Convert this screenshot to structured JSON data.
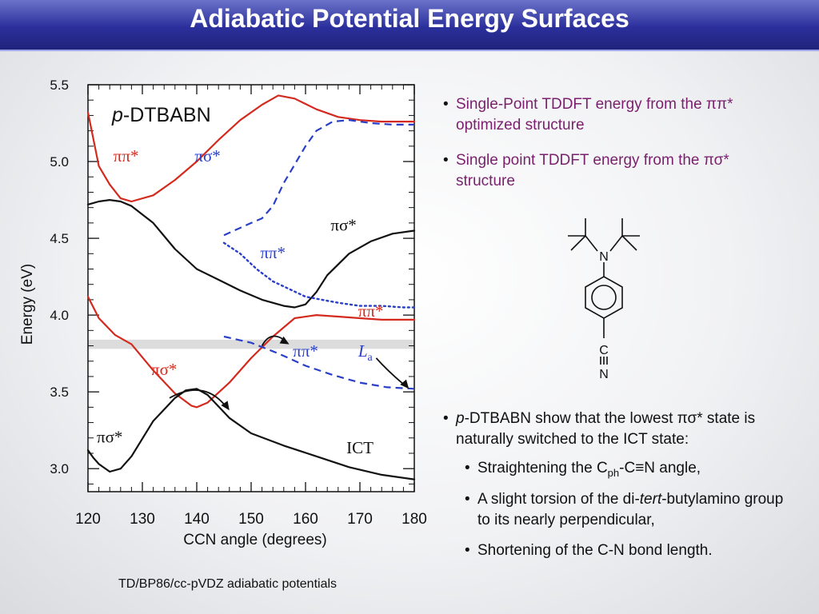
{
  "title": "Adiabatic Potential Energy Surfaces",
  "caption": "TD/BP86/cc-pVDZ adiabatic potentials",
  "bullets": {
    "b1": "Single-Point TDDFT energy from the ππ* optimized structure",
    "b2": "Single point TDDFT energy from the πσ* structure",
    "b3": "p-DTBABN show that the lowest πσ* state is naturally switched to the ICT state:",
    "s1": "Straightening the Cph-C≡N angle,",
    "s2": "A slight torsion of the di-tert-butylamino group to its nearly perpendicular,",
    "s3": "Shortening of the C-N bond length."
  },
  "molecule": {
    "atom_n": "N",
    "atom_c": "C",
    "atom_n2": "N"
  },
  "chart_data": {
    "type": "line",
    "title": "p-DTBABN",
    "xlabel": "CCN angle (degrees)",
    "ylabel": "Energy (eV)",
    "xlim": [
      120,
      180
    ],
    "ylim": [
      2.85,
      5.5
    ],
    "xticks": [
      120,
      130,
      140,
      150,
      160,
      170,
      180
    ],
    "yticks": [
      3.0,
      3.5,
      4.0,
      4.5,
      5.0,
      5.5
    ],
    "shaded_band": [
      3.78,
      3.84
    ],
    "series": [
      {
        "style": "red-solid",
        "color": "#d42a1e",
        "x": [
          120,
          122,
          124,
          126,
          128,
          132,
          136,
          140,
          144,
          148,
          152,
          155,
          158,
          162,
          166,
          170,
          174,
          180
        ],
        "y": [
          5.32,
          4.97,
          4.85,
          4.76,
          4.74,
          4.78,
          4.88,
          5.0,
          5.14,
          5.27,
          5.37,
          5.43,
          5.41,
          5.34,
          5.29,
          5.27,
          5.26,
          5.26
        ]
      },
      {
        "style": "black-solid",
        "color": "#111111",
        "x": [
          120,
          122,
          124,
          126,
          128,
          132,
          136,
          140,
          144,
          148,
          152,
          156,
          158,
          160,
          162,
          164,
          168,
          172,
          176,
          180
        ],
        "y": [
          4.72,
          4.74,
          4.75,
          4.74,
          4.71,
          4.6,
          4.43,
          4.3,
          4.23,
          4.16,
          4.1,
          4.06,
          4.05,
          4.07,
          4.15,
          4.26,
          4.4,
          4.48,
          4.53,
          4.55
        ]
      },
      {
        "style": "red-solid",
        "color": "#d42a1e",
        "x": [
          120,
          122,
          125,
          128,
          132,
          136,
          139,
          140,
          142,
          146,
          150,
          154,
          158,
          162,
          166,
          170,
          174,
          180
        ],
        "y": [
          4.12,
          3.98,
          3.87,
          3.81,
          3.64,
          3.49,
          3.41,
          3.4,
          3.43,
          3.56,
          3.72,
          3.86,
          3.98,
          4.0,
          3.99,
          3.98,
          3.97,
          3.97
        ]
      },
      {
        "style": "black-solid",
        "color": "#111111",
        "x": [
          120,
          121,
          122,
          124,
          126,
          128,
          132,
          136,
          138,
          140,
          142,
          146,
          150,
          156,
          162,
          168,
          174,
          180
        ],
        "y": [
          3.12,
          3.07,
          3.03,
          2.98,
          3.0,
          3.08,
          3.31,
          3.46,
          3.51,
          3.52,
          3.48,
          3.33,
          3.23,
          3.15,
          3.08,
          3.01,
          2.96,
          2.93
        ]
      },
      {
        "style": "blue-dashed",
        "color": "#2a3fc8",
        "x": [
          145,
          150,
          152,
          154,
          156,
          158,
          160,
          162,
          165,
          168,
          172,
          176,
          180
        ],
        "y": [
          4.52,
          4.6,
          4.63,
          4.71,
          4.86,
          4.98,
          5.1,
          5.2,
          5.26,
          5.27,
          5.25,
          5.24,
          5.24
        ]
      },
      {
        "style": "blue-dotted",
        "color": "#2a3fc8",
        "x": [
          145,
          148,
          151,
          154,
          157,
          160,
          163,
          166,
          170,
          174,
          178,
          180
        ],
        "y": [
          4.47,
          4.4,
          4.3,
          4.22,
          4.17,
          4.12,
          4.1,
          4.08,
          4.06,
          4.06,
          4.05,
          4.05
        ]
      },
      {
        "style": "blue-dashed",
        "color": "#2a3fc8",
        "x": [
          145,
          150,
          155,
          160,
          165,
          170,
          175,
          180
        ],
        "y": [
          3.86,
          3.82,
          3.75,
          3.67,
          3.61,
          3.56,
          3.53,
          3.52
        ]
      }
    ],
    "annotations": [
      {
        "text": "ππ*",
        "x": 127,
        "y": 5.0,
        "color": "#d42a1e"
      },
      {
        "text": "πσ*",
        "x": 142,
        "y": 5.0,
        "color": "#2a3fc8"
      },
      {
        "text": "πσ*",
        "x": 167,
        "y": 4.55,
        "color": "#111111"
      },
      {
        "text": "ππ*",
        "x": 154,
        "y": 4.37,
        "color": "#2a3fc8"
      },
      {
        "text": "ππ*",
        "x": 172,
        "y": 3.99,
        "color": "#d42a1e"
      },
      {
        "text": "ππ*",
        "x": 160,
        "y": 3.73,
        "color": "#2a3fc8"
      },
      {
        "text": "La",
        "x": 171,
        "y": 3.73,
        "color": "#2a3fc8"
      },
      {
        "text": "πσ*",
        "x": 134,
        "y": 3.61,
        "color": "#d42a1e"
      },
      {
        "text": "πσ*",
        "x": 124,
        "y": 3.17,
        "color": "#111111"
      },
      {
        "text": "ICT",
        "x": 170,
        "y": 3.1,
        "color": "#111111"
      }
    ]
  }
}
